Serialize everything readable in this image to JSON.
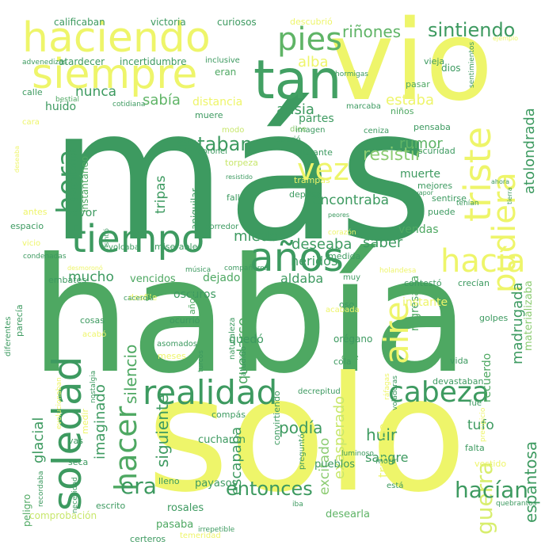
{
  "words": [
    {
      "text": "más",
      "color": "#3d9a60"
    },
    {
      "text": "había",
      "color": "#4ea862"
    },
    {
      "text": "solo",
      "color": "#eef56a"
    },
    {
      "text": "vio",
      "color": "#eef56a"
    },
    {
      "text": "haciendo",
      "color": "#eef56a"
    },
    {
      "text": "siempre",
      "color": "#eef56a"
    },
    {
      "text": "tan",
      "color": "#42a063"
    },
    {
      "text": "tiempo",
      "color": "#3d9a60"
    },
    {
      "text": "años",
      "color": "#3d9a60"
    },
    {
      "text": "triste",
      "color": "#eef56a"
    },
    {
      "text": "pudiera",
      "color": "#eef56a"
    },
    {
      "text": "realidad",
      "color": "#3d9a60"
    },
    {
      "text": "soledad",
      "color": "#3d9a60"
    },
    {
      "text": "hacer",
      "color": "#4ea862"
    },
    {
      "text": "cabeza",
      "color": "#3d9a60"
    },
    {
      "text": "aire",
      "color": "#eef56a"
    },
    {
      "text": "hora",
      "color": "#3d9a60"
    },
    {
      "text": "pies",
      "color": "#5fb466"
    },
    {
      "text": "vez",
      "color": "#eef56a"
    },
    {
      "text": "hacía",
      "color": "#eef56a"
    },
    {
      "text": "entonces",
      "color": "#3d9a60"
    },
    {
      "text": "guerra",
      "color": "#d8ee6e"
    },
    {
      "text": "hacían",
      "color": "#3d9a60"
    },
    {
      "text": "era",
      "color": "#3d9a60"
    },
    {
      "text": "sintiendo",
      "color": "#3d9a60"
    },
    {
      "text": "riñones",
      "color": "#5fb466"
    },
    {
      "text": "atolondrada",
      "color": "#3d9a60"
    },
    {
      "text": "madrugada",
      "color": "#3d9a60"
    },
    {
      "text": "espantosa",
      "color": "#3d9a60"
    },
    {
      "text": "estaban",
      "color": "#3d9a60"
    },
    {
      "text": "resistir",
      "color": "#8ccc72"
    },
    {
      "text": "exasperado",
      "color": "#c8e76c"
    },
    {
      "text": "podía",
      "color": "#3d9a60"
    },
    {
      "text": "silencio",
      "color": "#4ea862"
    },
    {
      "text": "siguiente",
      "color": "#3d9a60"
    },
    {
      "text": "imaginado",
      "color": "#3d9a60"
    },
    {
      "text": "glacial",
      "color": "#3d9a60"
    },
    {
      "text": "escapaba",
      "color": "#3d9a60"
    },
    {
      "text": "quedarse",
      "color": "#4ea862"
    },
    {
      "text": "deseaba",
      "color": "#3d9a60"
    },
    {
      "text": "miedo",
      "color": "#3d9a60"
    },
    {
      "text": "mucho",
      "color": "#3d9a60"
    },
    {
      "text": "huir",
      "color": "#3d9a60"
    },
    {
      "text": "rumor",
      "color": "#5fb466"
    },
    {
      "text": "saber",
      "color": "#3d9a60"
    },
    {
      "text": "sabía",
      "color": "#5fb466"
    },
    {
      "text": "ansia",
      "color": "#3d9a60"
    },
    {
      "text": "alba",
      "color": "#eef56a"
    },
    {
      "text": "estaba",
      "color": "#eef56a"
    },
    {
      "text": "nunca",
      "color": "#3d9a60"
    },
    {
      "text": "tripas",
      "color": "#3d9a60"
    },
    {
      "text": "excitado",
      "color": "#8ccc72"
    },
    {
      "text": "tufo",
      "color": "#3d9a60"
    },
    {
      "text": "sangre",
      "color": "#3d9a60"
    },
    {
      "text": "tratando",
      "color": "#eef56a"
    },
    {
      "text": "encontraba",
      "color": "#3d9a60"
    },
    {
      "text": "muerte",
      "color": "#3d9a60"
    },
    {
      "text": "vendas",
      "color": "#4ea862"
    },
    {
      "text": "heridos",
      "color": "#3d9a60"
    },
    {
      "text": "aldaba",
      "color": "#3d9a60"
    },
    {
      "text": "regresaba",
      "color": "#4ea862"
    },
    {
      "text": "instante",
      "color": "#eef56a"
    },
    {
      "text": "recuerdo",
      "color": "#4ea862"
    },
    {
      "text": "materializaba",
      "color": "#8ccc72"
    },
    {
      "text": "oscuros",
      "color": "#3d9a60"
    },
    {
      "text": "pavor",
      "color": "#3d9a60"
    },
    {
      "text": "huido",
      "color": "#3d9a60"
    },
    {
      "text": "partes",
      "color": "#3d9a60"
    },
    {
      "text": "distancia",
      "color": "#eef56a"
    },
    {
      "text": "dejado",
      "color": "#4ea862"
    },
    {
      "text": "vencidos",
      "color": "#4ea862"
    },
    {
      "text": "dormitorios",
      "color": "#3d9a60"
    },
    {
      "text": "instantáneo",
      "color": "#4ea862"
    },
    {
      "text": "aniquilar",
      "color": "#3d9a60"
    },
    {
      "text": "comprobación",
      "color": "#c8e76c"
    },
    {
      "text": "peligro",
      "color": "#4ea862"
    },
    {
      "text": "desearla",
      "color": "#5fb466"
    },
    {
      "text": "pasaba",
      "color": "#4ea862"
    },
    {
      "text": "rosales",
      "color": "#3d9a60"
    },
    {
      "text": "payasos",
      "color": "#3d9a60"
    },
    {
      "text": "cucharón",
      "color": "#3d9a60"
    },
    {
      "text": "pueblos",
      "color": "#3d9a60"
    },
    {
      "text": "contestó",
      "color": "#3d9a60"
    },
    {
      "text": "crecían",
      "color": "#3d9a60"
    },
    {
      "text": "atardecer",
      "color": "#3d9a60"
    },
    {
      "text": "incertidumbre",
      "color": "#3d9a60"
    },
    {
      "text": "inclusive",
      "color": "#3d9a60"
    },
    {
      "text": "victoria",
      "color": "#3d9a60"
    },
    {
      "text": "curiosos",
      "color": "#3d9a60"
    },
    {
      "text": "calificaban",
      "color": "#3d9a60"
    },
    {
      "text": "descubrió",
      "color": "#eef56a"
    },
    {
      "text": "vieja",
      "color": "#3d9a60"
    },
    {
      "text": "eran",
      "color": "#4ea862"
    },
    {
      "text": "pasar",
      "color": "#4ea862"
    },
    {
      "text": "dios",
      "color": "#3d9a60"
    },
    {
      "text": "calle",
      "color": "#3d9a60"
    },
    {
      "text": "bestial",
      "color": "#4ea862"
    },
    {
      "text": "marcaba",
      "color": "#3d9a60"
    },
    {
      "text": "muere",
      "color": "#3d9a60"
    },
    {
      "text": "sonrió",
      "color": "#3d9a60"
    },
    {
      "text": "imagen",
      "color": "#3d9a60"
    },
    {
      "text": "distante",
      "color": "#3d9a60"
    },
    {
      "text": "oscuridad",
      "color": "#3d9a60"
    },
    {
      "text": "pensaba",
      "color": "#3d9a60"
    },
    {
      "text": "niños",
      "color": "#4ea862"
    },
    {
      "text": "ceniza",
      "color": "#3d9a60"
    },
    {
      "text": "dice",
      "color": "#8ccc72"
    },
    {
      "text": "modo",
      "color": "#c8e76c"
    },
    {
      "text": "coronel",
      "color": "#3d9a60"
    },
    {
      "text": "torpeza",
      "color": "#c8e76c"
    },
    {
      "text": "trampas",
      "color": "#eef56a"
    },
    {
      "text": "deprisa",
      "color": "#3d9a60"
    },
    {
      "text": "falla",
      "color": "#3d9a60"
    },
    {
      "text": "corredor",
      "color": "#3d9a60"
    },
    {
      "text": "compañeros",
      "color": "#3d9a60"
    },
    {
      "text": "miserable",
      "color": "#3d9a60"
    },
    {
      "text": "revolcaba",
      "color": "#3d9a60"
    },
    {
      "text": "desfile",
      "color": "#eef56a"
    },
    {
      "text": "cosas",
      "color": "#3d9a60"
    },
    {
      "text": "acabó",
      "color": "#eef56a"
    },
    {
      "text": "ocurrió",
      "color": "#3d9a60"
    },
    {
      "text": "añoró",
      "color": "#4ea862"
    },
    {
      "text": "meses",
      "color": "#eef56a"
    },
    {
      "text": "asomados",
      "color": "#3d9a60"
    },
    {
      "text": "naturaleza",
      "color": "#3d9a60"
    },
    {
      "text": "atudido",
      "color": "#3d9a60"
    },
    {
      "text": "quedó",
      "color": "#3d9a60"
    },
    {
      "text": "orégano",
      "color": "#3d9a60"
    },
    {
      "text": "cree",
      "color": "#4ea862"
    },
    {
      "text": "cola",
      "color": "#3d9a60"
    },
    {
      "text": "vida",
      "color": "#3d9a60"
    },
    {
      "text": "devastaban",
      "color": "#3d9a60"
    },
    {
      "text": "fue",
      "color": "#3d9a60"
    },
    {
      "text": "oso",
      "color": "#3d9a60"
    },
    {
      "text": "golpes",
      "color": "#3d9a60"
    },
    {
      "text": "holandesa",
      "color": "#eef56a"
    },
    {
      "text": "acabada",
      "color": "#eef56a"
    },
    {
      "text": "muy",
      "color": "#3d9a60"
    },
    {
      "text": "embates",
      "color": "#3d9a60"
    },
    {
      "text": "cacerola",
      "color": "#3d9a60"
    },
    {
      "text": "compás",
      "color": "#3d9a60"
    },
    {
      "text": "decrepitud",
      "color": "#3d9a60"
    },
    {
      "text": "convirtiendo",
      "color": "#3d9a60"
    },
    {
      "text": "preguntó",
      "color": "#3d9a60"
    },
    {
      "text": "luminoso",
      "color": "#3d9a60"
    },
    {
      "text": "morir",
      "color": "#3d9a60"
    },
    {
      "text": "vestido",
      "color": "#eef56a"
    },
    {
      "text": "falta",
      "color": "#3d9a60"
    },
    {
      "text": "está",
      "color": "#3d9a60"
    },
    {
      "text": "lleno",
      "color": "#3d9a60"
    },
    {
      "text": "vas",
      "color": "#3d9a60"
    },
    {
      "text": "seca",
      "color": "#3d9a60"
    },
    {
      "text": "medir",
      "color": "#eef56a"
    },
    {
      "text": "escrito",
      "color": "#3d9a60"
    },
    {
      "text": "irrepetible",
      "color": "#3d9a60"
    },
    {
      "text": "temeridad",
      "color": "#eef56a"
    },
    {
      "text": "certeros",
      "color": "#3d9a60"
    },
    {
      "text": "iba",
      "color": "#3d9a60"
    },
    {
      "text": "quebrantos",
      "color": "#3d9a60"
    },
    {
      "text": "recordaba",
      "color": "#3d9a60"
    },
    {
      "text": "necesidad",
      "color": "#3d9a60"
    },
    {
      "text": "evolucionaban",
      "color": "#eef56a"
    },
    {
      "text": "nostalgia",
      "color": "#3d9a60"
    },
    {
      "text": "turcos",
      "color": "#3d9a60"
    },
    {
      "text": "ráfagas",
      "color": "#eef56a"
    },
    {
      "text": "voladoras",
      "color": "#3d9a60"
    },
    {
      "text": "precipicio",
      "color": "#eef56a"
    },
    {
      "text": "diferentes",
      "color": "#3d9a60"
    },
    {
      "text": "parecía",
      "color": "#3d9a60"
    },
    {
      "text": "espacio",
      "color": "#3d9a60"
    },
    {
      "text": "antes",
      "color": "#eef56a"
    },
    {
      "text": "vicio",
      "color": "#eef56a"
    },
    {
      "text": "condenadas",
      "color": "#3d9a60"
    },
    {
      "text": "desmoronó",
      "color": "#eef56a"
    },
    {
      "text": "música",
      "color": "#3d9a60"
    },
    {
      "text": "medida",
      "color": "#3d9a60"
    },
    {
      "text": "corazón",
      "color": "#eef56a"
    },
    {
      "text": "peores",
      "color": "#3d9a60"
    },
    {
      "text": "puede",
      "color": "#3d9a60"
    },
    {
      "text": "sentirse",
      "color": "#3d9a60"
    },
    {
      "text": "tenían",
      "color": "#3d9a60"
    },
    {
      "text": "vapor",
      "color": "#3d9a60"
    },
    {
      "text": "mejores",
      "color": "#3d9a60"
    },
    {
      "text": "tierra",
      "color": "#3d9a60"
    },
    {
      "text": "ahora",
      "color": "#3d9a60"
    },
    {
      "text": "sintió",
      "color": "#3d9a60"
    },
    {
      "text": "cara",
      "color": "#eef56a"
    },
    {
      "text": "cotidiana",
      "color": "#3d9a60"
    },
    {
      "text": "resistido",
      "color": "#3d9a60"
    },
    {
      "text": "advenedizos",
      "color": "#3d9a60"
    },
    {
      "text": "hormigas",
      "color": "#3d9a60"
    },
    {
      "text": "sentimientos",
      "color": "#3d9a60"
    },
    {
      "text": "deseaba",
      "color": "#eef56a"
    },
    {
      "text": "ejemplo",
      "color": "#eef56a"
    }
  ]
}
